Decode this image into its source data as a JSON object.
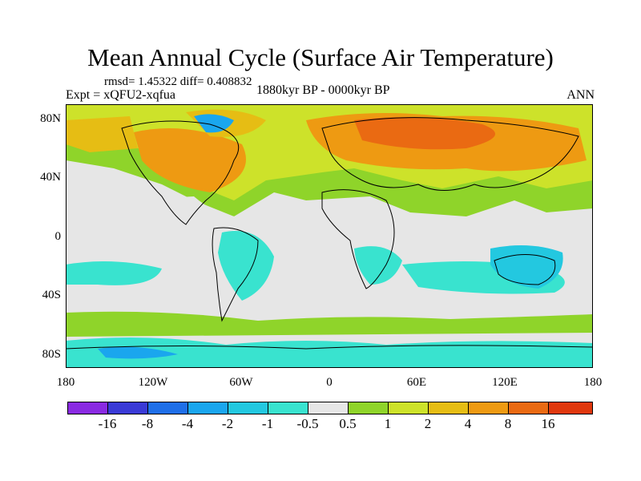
{
  "header": {
    "title": "Mean Annual Cycle (Surface Air Temperature)",
    "stats": "rmsd= 1.45322 diff= 0.408832",
    "experiment": "Expt = xQFU2-xqfua",
    "period": "1880kyr BP - 0000kyr BP",
    "season": "ANN"
  },
  "axes": {
    "y_ticks": [
      "80N",
      "40N",
      "0",
      "40S",
      "80S"
    ],
    "x_ticks": [
      "180",
      "120W",
      "60W",
      "0",
      "60E",
      "120E",
      "180"
    ]
  },
  "legend": {
    "colors": [
      "#8a2be2",
      "#3a3ad6",
      "#1f6fe8",
      "#1aa6ee",
      "#23c8e0",
      "#39e3cf",
      "#e6e6e6",
      "#8fd42a",
      "#cde22a",
      "#e6bd14",
      "#ee9a12",
      "#ea6a12",
      "#e0380e"
    ],
    "labels": [
      "-16",
      "-8",
      "-4",
      "-2",
      "-1",
      "-0.5",
      "0.5",
      "1",
      "2",
      "4",
      "8",
      "16"
    ]
  },
  "palette": {
    "neutral": "#e6e6e6",
    "land_outline": "#000000"
  }
}
